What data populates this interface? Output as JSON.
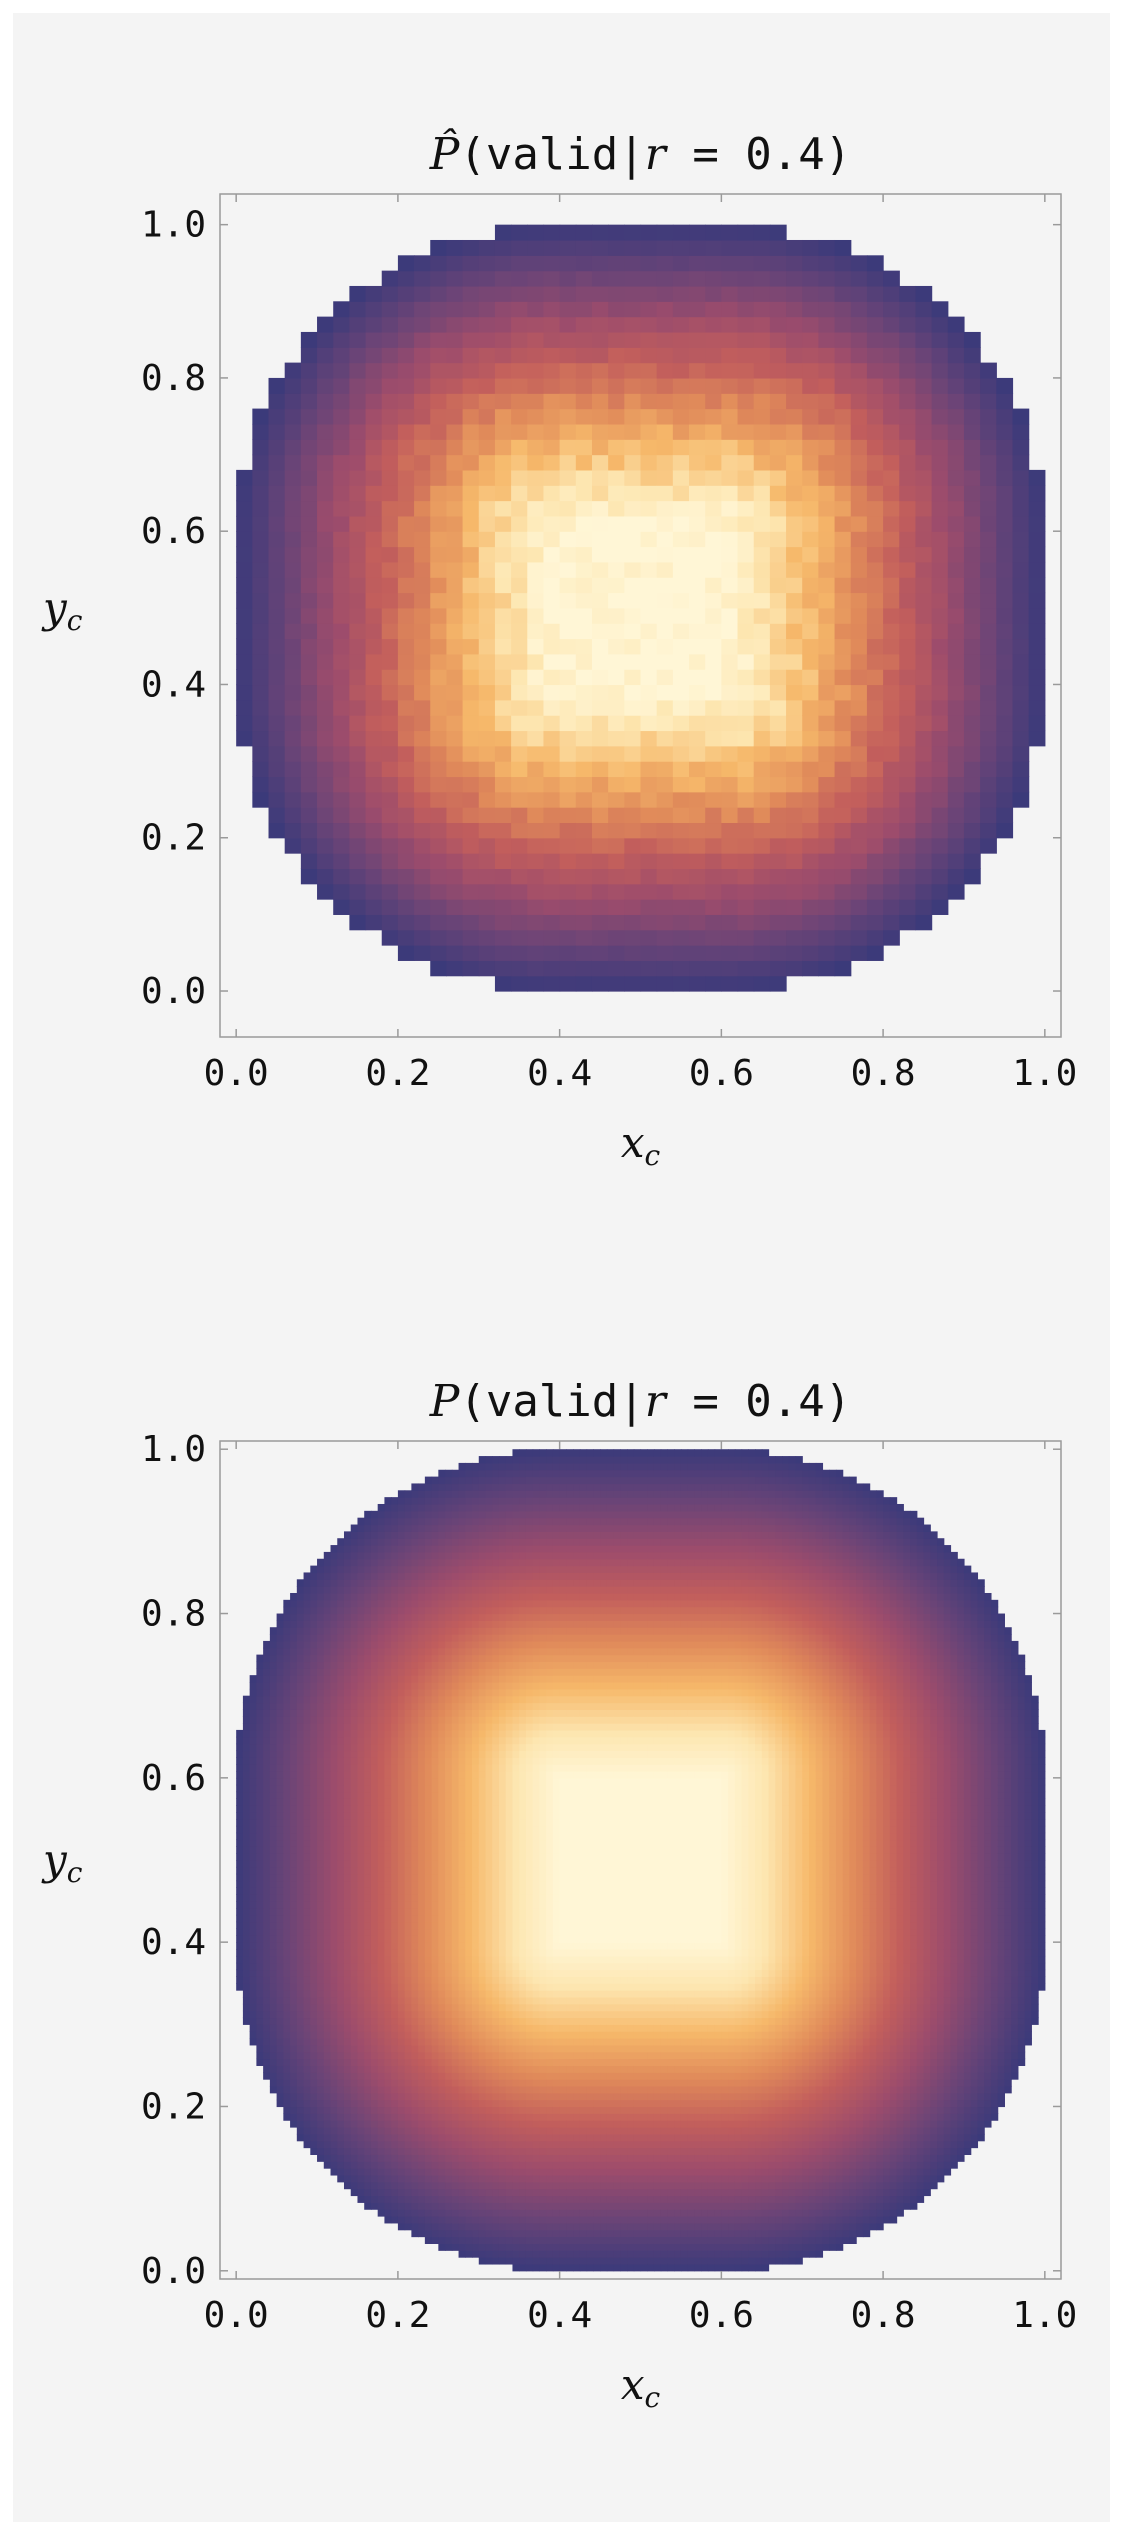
{
  "chart_data": [
    {
      "type": "heatmap",
      "variant": "binned-estimate",
      "title_prefix": "P̂",
      "title_paren_open": "(",
      "title_word": "valid",
      "title_bar": "|",
      "title_var": "r",
      "title_rest": " = 0.4",
      "title_paren_close": ")",
      "xlabel": "x",
      "xlabel_sub": "c",
      "ylabel": "y",
      "ylabel_sub": "c",
      "xlim": [
        -0.02,
        1.02
      ],
      "ylim": [
        -0.06,
        1.04
      ],
      "x_ticks": [
        "0.0",
        "0.2",
        "0.4",
        "0.6",
        "0.8",
        "1.0"
      ],
      "y_ticks": [
        "0.0",
        "0.2",
        "0.4",
        "0.6",
        "0.8",
        "1.0"
      ],
      "r": 0.4,
      "bin_width": 0.02,
      "colormap": [
        "#3b3a7a",
        "#6a4477",
        "#9c4c6c",
        "#c25e5c",
        "#e08a5a",
        "#f6b86a",
        "#fde6b0",
        "#fff6d6"
      ],
      "grid": false,
      "legend": "none"
    },
    {
      "type": "heatmap",
      "variant": "analytic",
      "title_prefix": "P",
      "title_paren_open": "(",
      "title_word": "valid",
      "title_bar": "|",
      "title_var": "r",
      "title_rest": " = 0.4",
      "title_paren_close": ")",
      "xlabel": "x",
      "xlabel_sub": "c",
      "ylabel": "y",
      "ylabel_sub": "c",
      "xlim": [
        -0.02,
        1.02
      ],
      "ylim": [
        -0.01,
        1.01
      ],
      "x_ticks": [
        "0.0",
        "0.2",
        "0.4",
        "0.6",
        "0.8",
        "1.0"
      ],
      "y_ticks": [
        "0.0",
        "0.2",
        "0.4",
        "0.6",
        "0.8",
        "1.0"
      ],
      "r": 0.4,
      "colormap": [
        "#3b3a7a",
        "#6a4477",
        "#9c4c6c",
        "#c25e5c",
        "#e08a5a",
        "#f6b86a",
        "#fde6b0",
        "#fff6d6"
      ],
      "grid": false,
      "legend": "none"
    }
  ]
}
